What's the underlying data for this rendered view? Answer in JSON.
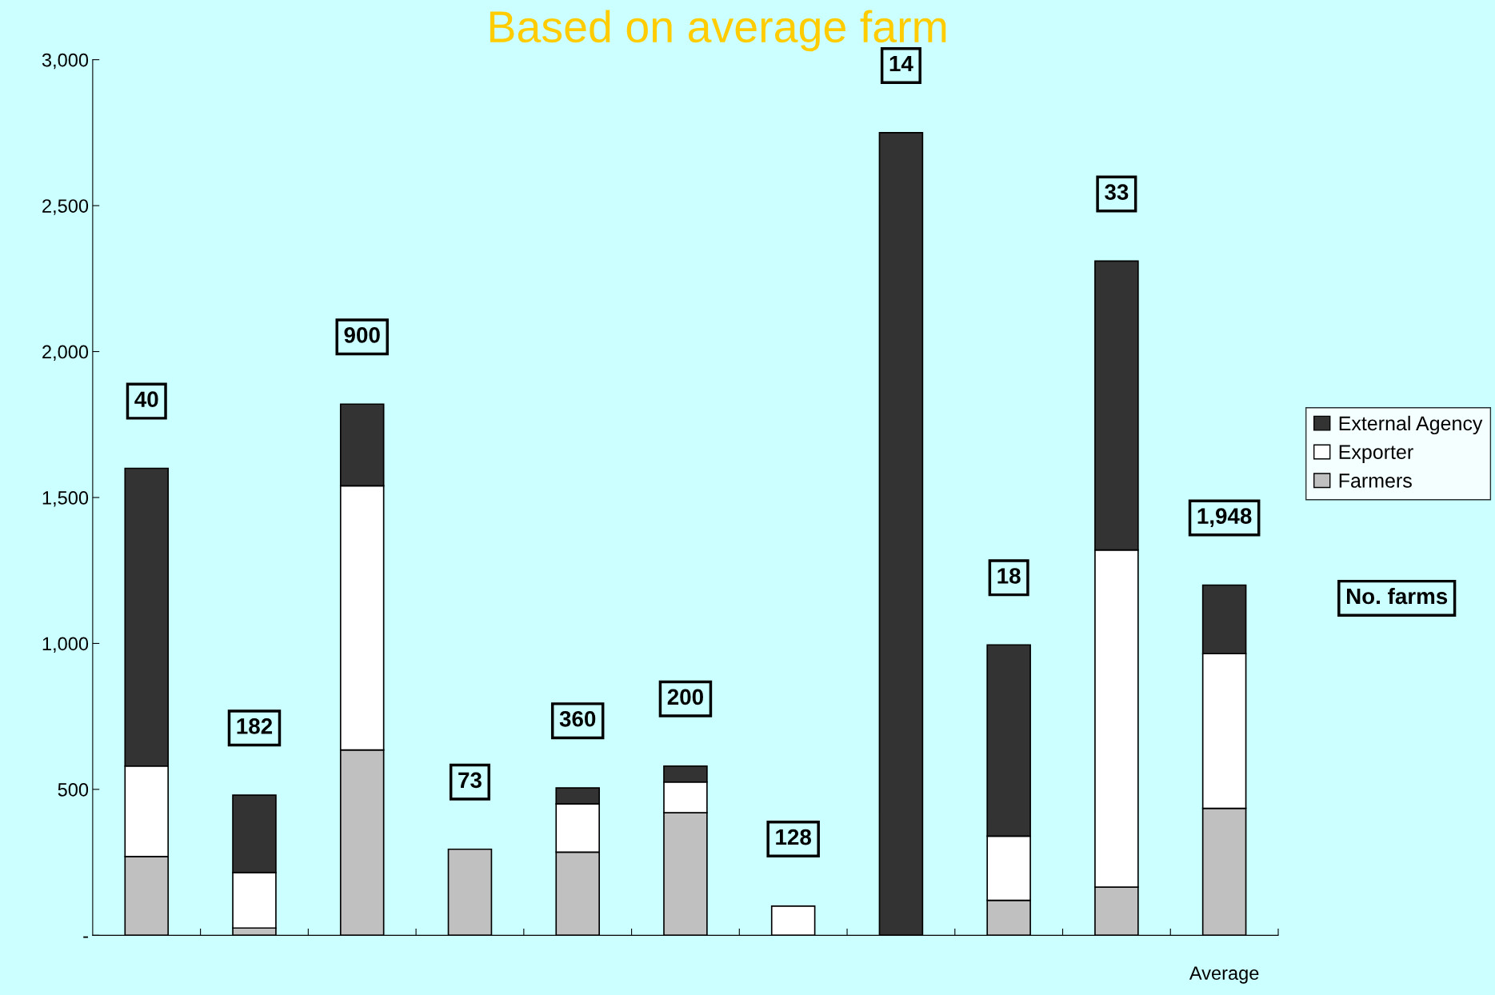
{
  "chart_data": {
    "type": "bar",
    "title": "Based on average farm",
    "stacked": true,
    "categories": [
      null,
      null,
      null,
      null,
      null,
      null,
      null,
      null,
      null,
      null,
      "Average"
    ],
    "series": [
      {
        "name": "Farmers",
        "color": "#c0c0c0",
        "values": [
          270,
          25,
          635,
          295,
          285,
          420,
          null,
          null,
          120,
          165,
          435
        ]
      },
      {
        "name": "Exporter",
        "color": "#ffffff",
        "values": [
          310,
          190,
          905,
          null,
          165,
          105,
          100,
          null,
          220,
          1155,
          530
        ]
      },
      {
        "name": "External Agency",
        "color": "#333333",
        "values": [
          1020,
          265,
          280,
          null,
          55,
          55,
          null,
          2750,
          655,
          990,
          235
        ]
      }
    ],
    "ylim": [
      0,
      3000
    ],
    "yticks": [
      {
        "value": 0,
        "label": "-"
      },
      500,
      {
        "value": 1000,
        "label": "1,000"
      },
      {
        "value": 1500,
        "label": "1,500"
      },
      {
        "value": 2000,
        "label": "2,000"
      },
      {
        "value": 2500,
        "label": "2,500"
      },
      {
        "value": 3000,
        "label": "3,000"
      }
    ],
    "annotations": [
      "40",
      "182",
      "900",
      "73",
      "360",
      "200",
      "128",
      "14",
      "18",
      "33",
      "1,948",
      "No. farms"
    ],
    "grid": false,
    "legend": "right"
  }
}
